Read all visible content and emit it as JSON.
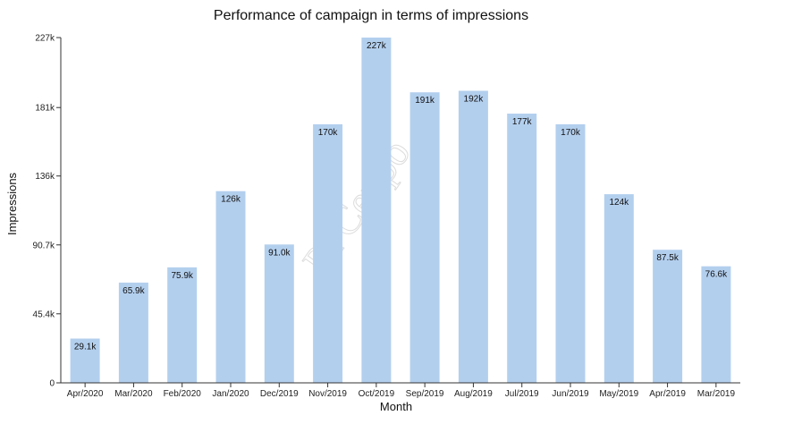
{
  "chart_data": {
    "type": "bar",
    "title": "Performance of campaign in terms of impressions",
    "xlabel": "Month",
    "ylabel": "Impressions",
    "categories": [
      "Apr/2020",
      "Mar/2020",
      "Feb/2020",
      "Jan/2020",
      "Dec/2019",
      "Nov/2019",
      "Oct/2019",
      "Sep/2019",
      "Aug/2019",
      "Jul/2019",
      "Jun/2019",
      "May/2019",
      "Apr/2019",
      "Mar/2019"
    ],
    "values": [
      29100,
      65900,
      75900,
      126000,
      91000,
      170000,
      227000,
      191000,
      192000,
      177000,
      170000,
      124000,
      87500,
      76600
    ],
    "data_labels": [
      "29.1k",
      "65.9k",
      "75.9k",
      "126k",
      "91.0k",
      "170k",
      "227k",
      "191k",
      "192k",
      "177k",
      "170k",
      "124k",
      "87.5k",
      "76.6k"
    ],
    "yticks": [
      0,
      45400,
      90700,
      136000,
      181000,
      227000
    ],
    "ytick_labels": [
      "0",
      "45.4k",
      "90.7k",
      "136k",
      "181k",
      "227k"
    ],
    "ylim": [
      0,
      227000
    ],
    "grid": false,
    "legend": "none",
    "bar_color": "#b3cfee"
  },
  "watermark": "PPCexpo"
}
